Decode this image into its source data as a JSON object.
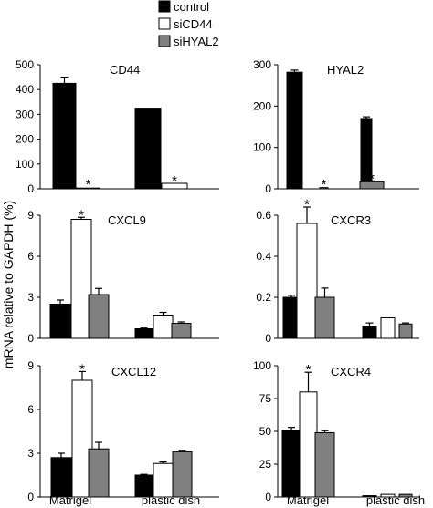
{
  "legend": [
    {
      "label": "control",
      "color": "#000000"
    },
    {
      "label": "siCD44",
      "color": "#ffffff"
    },
    {
      "label": "siHYAL2",
      "color": "#808080"
    }
  ],
  "ylabel": "mRNA relative to GAPDH (%)",
  "xcategories": [
    "Matrigel",
    "plastic dish"
  ],
  "colors": {
    "control": "#000000",
    "siCD44": "#ffffff",
    "siHYAL2": "#808080",
    "axis": "#000000"
  },
  "chart_data": [
    {
      "type": "bar",
      "title": "CD44",
      "categories": [
        "Matrigel",
        "plastic dish"
      ],
      "series": [
        {
          "name": "control",
          "values": [
            425,
            325
          ],
          "errors": [
            25,
            0
          ]
        },
        {
          "name": "siCD44",
          "values": [
            3,
            22
          ],
          "errors": [
            0,
            0
          ]
        },
        {
          "name": "siHYAL2",
          "values": [
            null,
            null
          ],
          "errors": [
            0,
            0
          ]
        }
      ],
      "ylim": [
        0,
        500
      ],
      "yticks": [
        "0",
        "100",
        "200",
        "300",
        "400",
        "500"
      ],
      "yticks_values": [
        0,
        100,
        200,
        300,
        400,
        500
      ],
      "significance": [
        {
          "group": 0,
          "series": 1,
          "label": "*"
        },
        {
          "group": 1,
          "series": 1,
          "label": "*"
        }
      ]
    },
    {
      "type": "bar",
      "title": "HYAL2",
      "categories": [
        "Matrigel",
        "plastic dish"
      ],
      "series": [
        {
          "name": "control",
          "values": [
            282,
            170
          ],
          "errors": [
            5,
            4
          ]
        },
        {
          "name": "siCD44",
          "values": [
            null,
            null
          ],
          "errors": [
            0,
            0
          ]
        },
        {
          "name": "siHYAL2",
          "values": [
            3,
            17
          ],
          "errors": [
            0,
            2
          ]
        }
      ],
      "ylim": [
        0,
        300
      ],
      "yticks": [
        "0",
        "100",
        "200",
        "300"
      ],
      "yticks_values": [
        0,
        100,
        200,
        300
      ],
      "significance": [
        {
          "group": 0,
          "series": 2,
          "label": "*"
        },
        {
          "group": 1,
          "series": 2,
          "label": "*"
        }
      ]
    },
    {
      "type": "bar",
      "title": "CXCL9",
      "categories": [
        "Matrigel",
        "plastic dish"
      ],
      "series": [
        {
          "name": "control",
          "values": [
            2.5,
            0.7
          ],
          "errors": [
            0.3,
            0.05
          ]
        },
        {
          "name": "siCD44",
          "values": [
            8.7,
            1.7
          ],
          "errors": [
            0.15,
            0.2
          ]
        },
        {
          "name": "siHYAL2",
          "values": [
            3.2,
            1.1
          ],
          "errors": [
            0.45,
            0.1
          ]
        }
      ],
      "ylim": [
        0,
        9
      ],
      "yticks": [
        "0",
        "3",
        "6",
        "9"
      ],
      "yticks_values": [
        0,
        3,
        6,
        9
      ],
      "significance": [
        {
          "group": 0,
          "series": 1,
          "label": "*"
        }
      ]
    },
    {
      "type": "bar",
      "title": "CXCR3",
      "categories": [
        "Matrigel",
        "plastic dish"
      ],
      "series": [
        {
          "name": "control",
          "values": [
            0.2,
            0.06
          ],
          "errors": [
            0.01,
            0.015
          ]
        },
        {
          "name": "siCD44",
          "values": [
            0.56,
            0.1
          ],
          "errors": [
            0.08,
            0
          ]
        },
        {
          "name": "siHYAL2",
          "values": [
            0.2,
            0.07
          ],
          "errors": [
            0.045,
            0.005
          ]
        }
      ],
      "ylim": [
        0,
        0.6
      ],
      "yticks": [
        "0",
        "0.2",
        "0.4",
        "0.6"
      ],
      "yticks_values": [
        0,
        0.2,
        0.4,
        0.6
      ],
      "significance": [
        {
          "group": 0,
          "series": 1,
          "label": "*"
        }
      ]
    },
    {
      "type": "bar",
      "title": "CXCL12",
      "categories": [
        "Matrigel",
        "plastic dish"
      ],
      "series": [
        {
          "name": "control",
          "values": [
            2.7,
            1.5
          ],
          "errors": [
            0.3,
            0.05
          ]
        },
        {
          "name": "siCD44",
          "values": [
            8.0,
            2.3
          ],
          "errors": [
            0.6,
            0.1
          ]
        },
        {
          "name": "siHYAL2",
          "values": [
            3.3,
            3.1
          ],
          "errors": [
            0.45,
            0.1
          ]
        }
      ],
      "ylim": [
        0,
        9
      ],
      "yticks": [
        "0",
        "3",
        "6",
        "9"
      ],
      "yticks_values": [
        0,
        3,
        6,
        9
      ],
      "significance": [
        {
          "group": 0,
          "series": 1,
          "label": "*"
        }
      ]
    },
    {
      "type": "bar",
      "title": "CXCR4",
      "categories": [
        "Matrigel",
        "plastic dish"
      ],
      "series": [
        {
          "name": "control",
          "values": [
            51,
            1
          ],
          "errors": [
            2,
            0
          ]
        },
        {
          "name": "siCD44",
          "values": [
            80,
            2
          ],
          "errors": [
            15,
            0
          ]
        },
        {
          "name": "siHYAL2",
          "values": [
            49,
            2
          ],
          "errors": [
            1.5,
            0
          ]
        }
      ],
      "ylim": [
        0,
        100
      ],
      "yticks": [
        "0",
        "25",
        "50",
        "75",
        "100"
      ],
      "yticks_values": [
        0,
        25,
        50,
        75,
        100
      ],
      "significance": [
        {
          "group": 0,
          "series": 1,
          "label": "*"
        }
      ]
    }
  ]
}
